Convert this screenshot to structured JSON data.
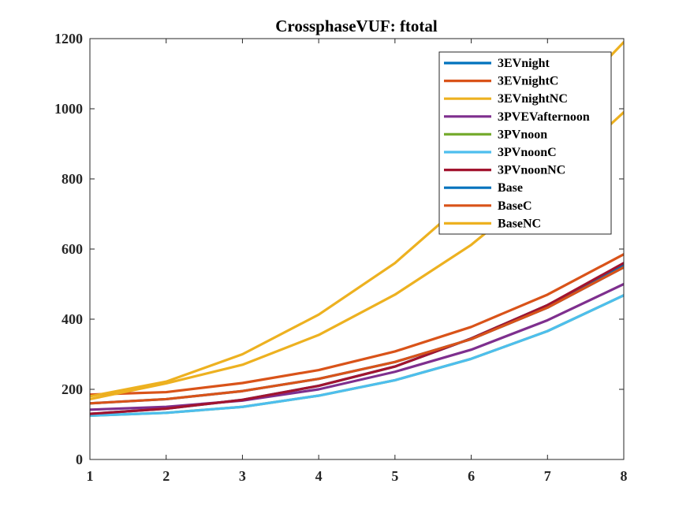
{
  "chart_data": {
    "type": "line",
    "title": "CrossphaseVUF: ftotal",
    "xlabel": "",
    "ylabel": "",
    "xlim": [
      1,
      8
    ],
    "ylim": [
      0,
      1200
    ],
    "x": [
      1,
      2,
      3,
      4,
      5,
      6,
      7,
      8
    ],
    "xticks": [
      "1",
      "2",
      "3",
      "4",
      "5",
      "6",
      "7",
      "8"
    ],
    "yticks": [
      "0",
      "200",
      "400",
      "600",
      "800",
      "1000",
      "1200"
    ],
    "grid": false,
    "legend_position": "top-right",
    "series": [
      {
        "name": "3EVnight",
        "color": "#0072BD",
        "values": [
          130,
          145,
          170,
          210,
          265,
          345,
          440,
          555
        ]
      },
      {
        "name": "3EVnightC",
        "color": "#D95319",
        "values": [
          185,
          192,
          218,
          255,
          308,
          378,
          470,
          585
        ]
      },
      {
        "name": "3EVnightNC",
        "color": "#EDB120",
        "values": [
          180,
          222,
          300,
          413,
          560,
          750,
          962,
          1190
        ]
      },
      {
        "name": "3PVEVafternoon",
        "color": "#7E2F8E",
        "values": [
          142,
          150,
          168,
          200,
          250,
          313,
          397,
          500
        ]
      },
      {
        "name": "3PVnoon",
        "color": "#77AC30",
        "values": [
          125,
          133,
          150,
          182,
          226,
          287,
          366,
          468
        ]
      },
      {
        "name": "3PVnoonC",
        "color": "#4DBEEE",
        "values": [
          125,
          133,
          150,
          182,
          226,
          287,
          366,
          468
        ]
      },
      {
        "name": "3PVnoonNC",
        "color": "#A2142F",
        "values": [
          130,
          145,
          170,
          210,
          265,
          345,
          440,
          560
        ]
      },
      {
        "name": "Base",
        "color": "#0072BD",
        "values": [
          160,
          172,
          195,
          230,
          278,
          343,
          433,
          548
        ]
      },
      {
        "name": "BaseC",
        "color": "#D95319",
        "values": [
          160,
          172,
          195,
          230,
          278,
          343,
          433,
          548
        ]
      },
      {
        "name": "BaseNC",
        "color": "#EDB120",
        "values": [
          172,
          217,
          270,
          355,
          470,
          612,
          790,
          990
        ]
      }
    ]
  }
}
